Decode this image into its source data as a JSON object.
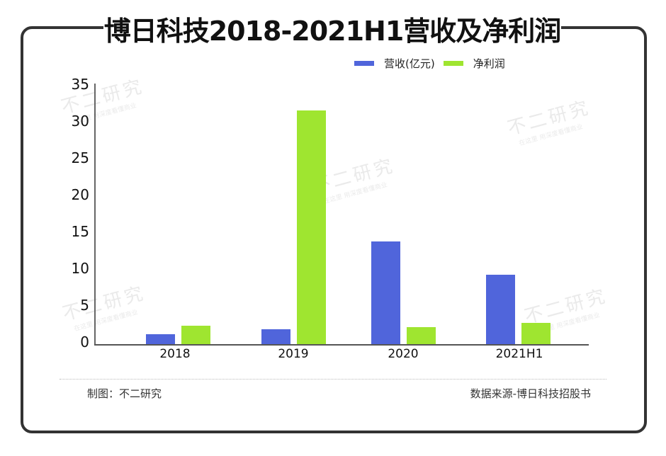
{
  "title": "博日科技2018-2021H1营收及净利润",
  "legend": [
    {
      "label": "营收(亿元)",
      "color": "#5065DB"
    },
    {
      "label": "净利润",
      "color": "#9FE530"
    }
  ],
  "footer": {
    "left": "制图：不二研究",
    "right": "数据来源-博日科技招股书"
  },
  "watermark": {
    "main": "不二研究",
    "sub": "在这里 用深度看懂商业"
  },
  "y_ticks": [
    "35",
    "30",
    "25",
    "20",
    "15",
    "10",
    "5",
    "0"
  ],
  "chart_data": {
    "type": "bar",
    "title": "博日科技2018-2021H1营收及净利润",
    "categories": [
      "2018",
      "2019",
      "2020",
      "2021H1"
    ],
    "series": [
      {
        "name": "营收(亿元)",
        "color": "#5065DB",
        "values": [
          1.3,
          2.0,
          13.9,
          9.4
        ]
      },
      {
        "name": "净利润",
        "color": "#9FE530",
        "values": [
          2.5,
          31.6,
          2.3,
          2.9
        ]
      }
    ],
    "xlabel": "",
    "ylabel": "",
    "ylim": [
      0,
      35
    ],
    "yticks": [
      0,
      5,
      10,
      15,
      20,
      25,
      30,
      35
    ],
    "grid": false,
    "legend_position": "top-right"
  }
}
